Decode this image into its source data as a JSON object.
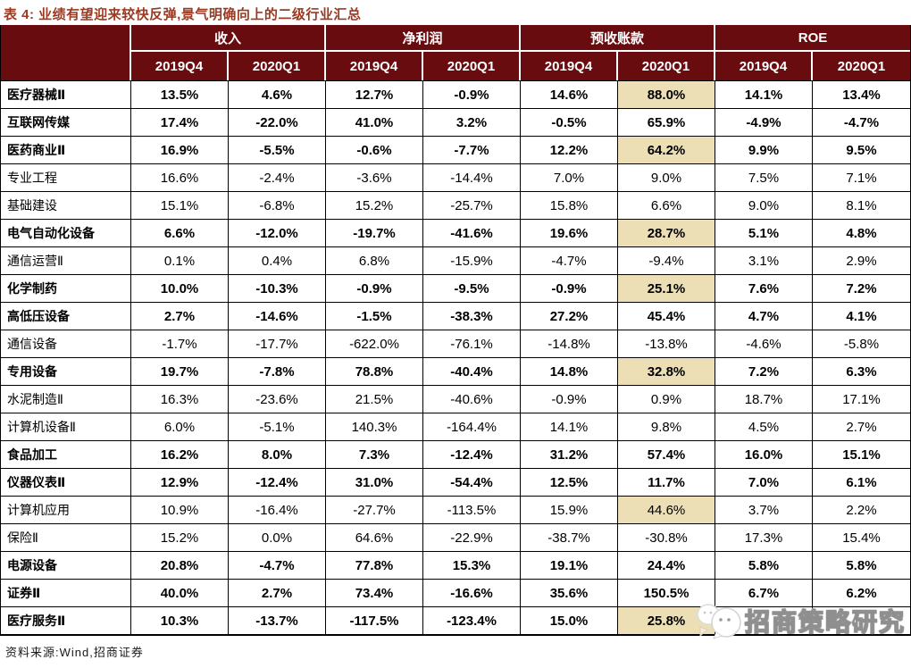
{
  "title": "表 4: 业绩有望迎来较快反弹,景气明确向上的二级行业汇总",
  "colors": {
    "header_bg": "#680c0f",
    "title_color": "#9b3a22",
    "highlight_bg": "#ecdfb6"
  },
  "table": {
    "groups": [
      {
        "label": "收入"
      },
      {
        "label": "净利润"
      },
      {
        "label": "预收账款"
      },
      {
        "label": "ROE"
      }
    ],
    "subheaders": [
      "2019Q4",
      "2020Q1",
      "2019Q4",
      "2020Q1",
      "2019Q4",
      "2020Q1",
      "2019Q4",
      "2020Q1"
    ],
    "rows": [
      {
        "label": "医疗器械Ⅱ",
        "bold": true,
        "values": [
          "13.5%",
          "4.6%",
          "12.7%",
          "-0.9%",
          "14.6%",
          "88.0%",
          "14.1%",
          "13.4%"
        ],
        "highlight": [
          5
        ]
      },
      {
        "label": "互联网传媒",
        "bold": true,
        "values": [
          "17.4%",
          "-22.0%",
          "41.0%",
          "3.2%",
          "-0.5%",
          "65.9%",
          "-4.9%",
          "-4.7%"
        ],
        "highlight": []
      },
      {
        "label": "医药商业Ⅱ",
        "bold": true,
        "values": [
          "16.9%",
          "-5.5%",
          "-0.6%",
          "-7.7%",
          "12.2%",
          "64.2%",
          "9.9%",
          "9.5%"
        ],
        "highlight": [
          5
        ]
      },
      {
        "label": "专业工程",
        "bold": false,
        "values": [
          "16.6%",
          "-2.4%",
          "-3.6%",
          "-14.4%",
          "7.0%",
          "9.0%",
          "7.5%",
          "7.1%"
        ],
        "highlight": []
      },
      {
        "label": "基础建设",
        "bold": false,
        "values": [
          "15.1%",
          "-6.8%",
          "15.2%",
          "-25.7%",
          "15.8%",
          "6.6%",
          "9.0%",
          "8.1%"
        ],
        "highlight": []
      },
      {
        "label": "电气自动化设备",
        "bold": true,
        "values": [
          "6.6%",
          "-12.0%",
          "-19.7%",
          "-41.6%",
          "19.6%",
          "28.7%",
          "5.1%",
          "4.8%"
        ],
        "highlight": [
          5
        ]
      },
      {
        "label": "通信运营Ⅱ",
        "bold": false,
        "values": [
          "0.1%",
          "0.4%",
          "6.8%",
          "-15.9%",
          "-4.7%",
          "-9.4%",
          "3.1%",
          "2.9%"
        ],
        "highlight": []
      },
      {
        "label": "化学制药",
        "bold": true,
        "values": [
          "10.0%",
          "-10.3%",
          "-0.9%",
          "-9.5%",
          "-0.9%",
          "25.1%",
          "7.6%",
          "7.2%"
        ],
        "highlight": [
          5
        ]
      },
      {
        "label": "高低压设备",
        "bold": true,
        "values": [
          "2.7%",
          "-14.6%",
          "-1.5%",
          "-38.3%",
          "27.2%",
          "45.4%",
          "4.7%",
          "4.1%"
        ],
        "highlight": []
      },
      {
        "label": "通信设备",
        "bold": false,
        "values": [
          "-1.7%",
          "-17.7%",
          "-622.0%",
          "-76.1%",
          "-14.8%",
          "-13.8%",
          "-4.6%",
          "-5.8%"
        ],
        "highlight": []
      },
      {
        "label": "专用设备",
        "bold": true,
        "values": [
          "19.7%",
          "-7.8%",
          "78.8%",
          "-40.4%",
          "14.8%",
          "32.8%",
          "7.2%",
          "6.3%"
        ],
        "highlight": [
          5
        ]
      },
      {
        "label": "水泥制造Ⅱ",
        "bold": false,
        "values": [
          "16.3%",
          "-23.6%",
          "21.5%",
          "-40.6%",
          "-0.9%",
          "0.9%",
          "18.7%",
          "17.1%"
        ],
        "highlight": []
      },
      {
        "label": "计算机设备Ⅱ",
        "bold": false,
        "values": [
          "6.0%",
          "-5.1%",
          "140.3%",
          "-164.4%",
          "14.1%",
          "9.8%",
          "4.5%",
          "2.7%"
        ],
        "highlight": []
      },
      {
        "label": "食品加工",
        "bold": true,
        "values": [
          "16.2%",
          "8.0%",
          "7.3%",
          "-12.4%",
          "31.2%",
          "57.4%",
          "16.0%",
          "15.1%"
        ],
        "highlight": []
      },
      {
        "label": "仪器仪表Ⅱ",
        "bold": true,
        "values": [
          "12.9%",
          "-12.4%",
          "31.0%",
          "-54.4%",
          "12.5%",
          "11.7%",
          "7.0%",
          "6.1%"
        ],
        "highlight": []
      },
      {
        "label": "计算机应用",
        "bold": false,
        "values": [
          "10.9%",
          "-16.4%",
          "-27.7%",
          "-113.5%",
          "15.9%",
          "44.6%",
          "3.7%",
          "2.2%"
        ],
        "highlight": [
          5
        ]
      },
      {
        "label": "保险Ⅱ",
        "bold": false,
        "values": [
          "15.2%",
          "0.0%",
          "64.6%",
          "-22.9%",
          "-38.7%",
          "-30.8%",
          "17.3%",
          "15.4%"
        ],
        "highlight": []
      },
      {
        "label": "电源设备",
        "bold": true,
        "values": [
          "20.8%",
          "-4.7%",
          "77.8%",
          "15.3%",
          "19.1%",
          "24.4%",
          "5.8%",
          "5.8%"
        ],
        "highlight": []
      },
      {
        "label": "证券Ⅱ",
        "bold": true,
        "values": [
          "40.0%",
          "2.7%",
          "73.4%",
          "-16.6%",
          "35.6%",
          "150.5%",
          "6.7%",
          "6.2%"
        ],
        "highlight": []
      },
      {
        "label": "医疗服务Ⅱ",
        "bold": true,
        "values": [
          "10.3%",
          "-13.7%",
          "-117.5%",
          "-123.4%",
          "15.0%",
          "25.8%",
          "",
          ""
        ],
        "highlight": [
          5
        ]
      }
    ]
  },
  "footer": {
    "source": "资料来源:Wind,招商证券"
  },
  "watermark": {
    "text": "招商策略研究",
    "icon": "wechat-logo-icon"
  }
}
